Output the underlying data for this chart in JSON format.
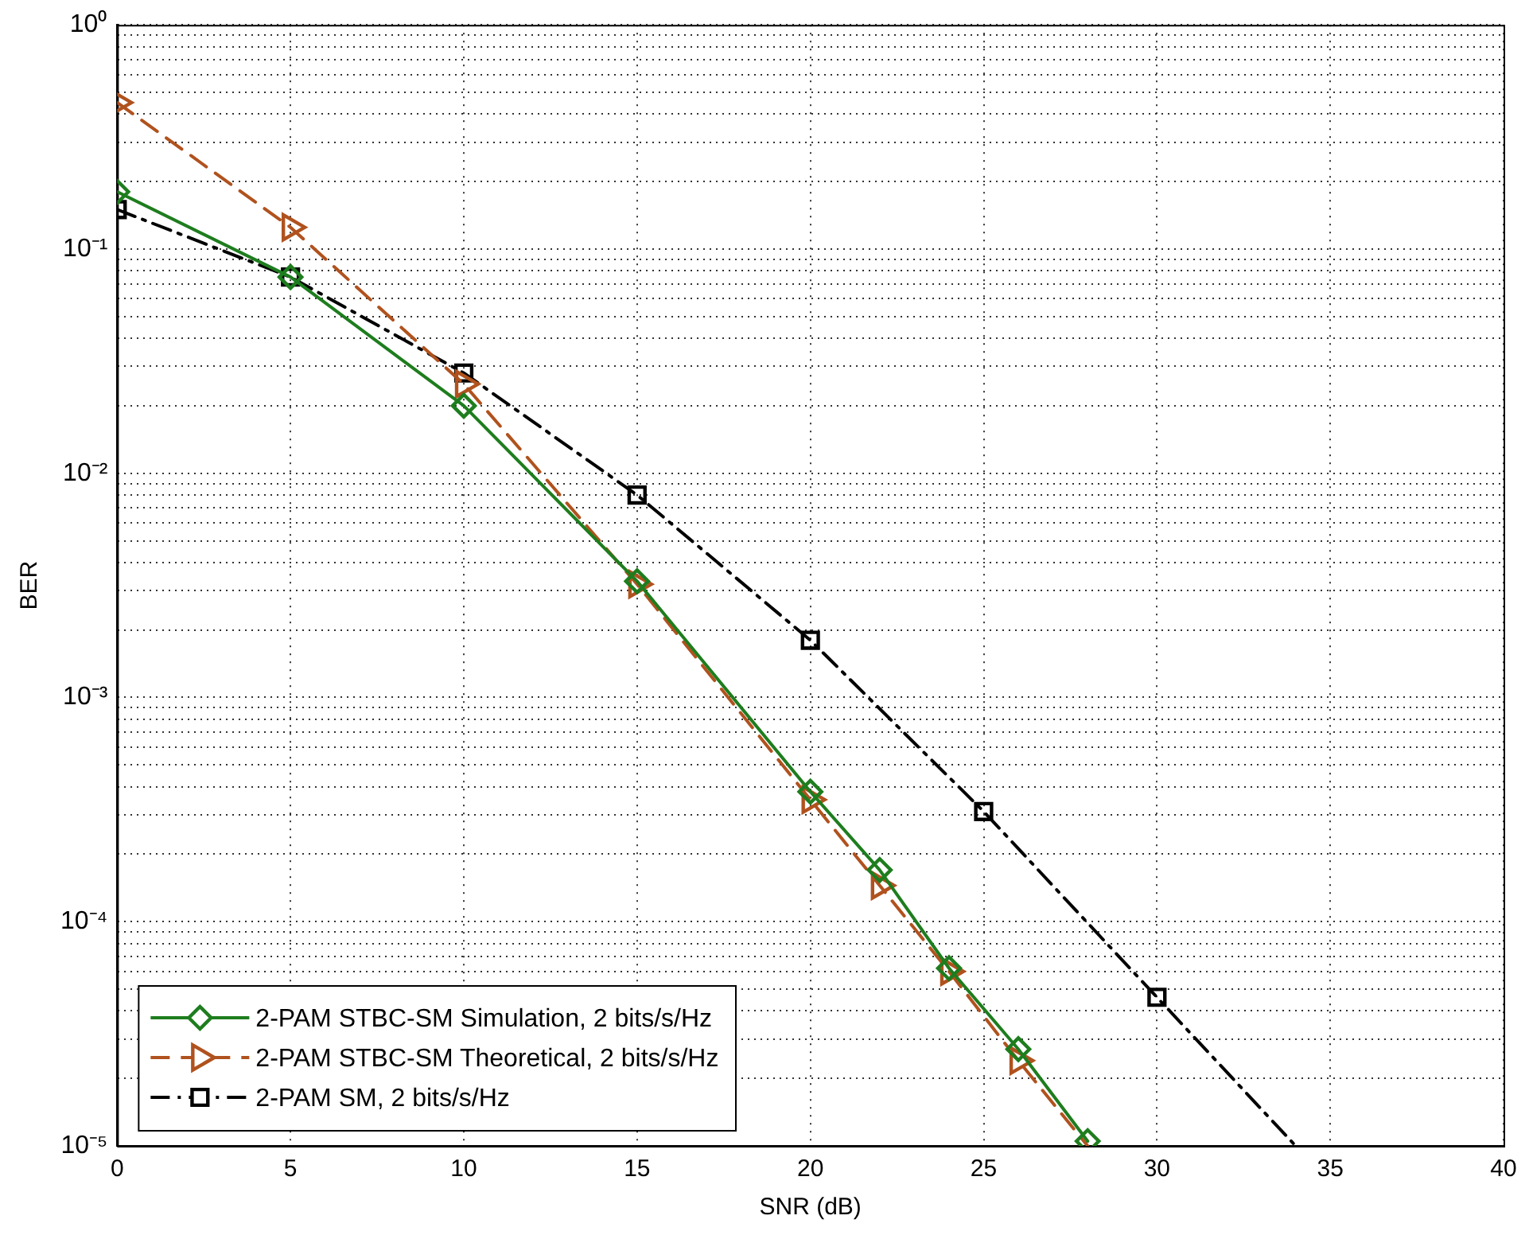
{
  "chart_data": {
    "type": "line",
    "xlabel": "SNR (dB)",
    "ylabel": "BER",
    "log": "y",
    "grid": true,
    "legend": "bottom left",
    "xlim": [
      0,
      40
    ],
    "xticks": [
      0,
      5,
      10,
      15,
      20,
      25,
      30,
      35,
      40
    ],
    "ylim": [
      1e-05,
      1
    ],
    "yticks": [
      {
        "value": 1e-05,
        "label": "10⁻⁵"
      },
      {
        "value": 2e-05,
        "label": null
      },
      {
        "value": 3e-05,
        "label": null
      },
      {
        "value": 4e-05,
        "label": null
      },
      {
        "value": 5e-05,
        "label": null
      },
      {
        "value": 6e-05,
        "label": null
      },
      {
        "value": 7e-05,
        "label": null
      },
      {
        "value": 8e-05,
        "label": null
      },
      {
        "value": 9e-05,
        "label": null
      },
      {
        "value": 0.0001,
        "label": "10⁻⁴"
      },
      {
        "value": 0.0002,
        "label": null
      },
      {
        "value": 0.0003,
        "label": null
      },
      {
        "value": 0.0004,
        "label": null
      },
      {
        "value": 0.0005,
        "label": null
      },
      {
        "value": 0.0006,
        "label": null
      },
      {
        "value": 0.0007,
        "label": null
      },
      {
        "value": 0.0008,
        "label": null
      },
      {
        "value": 0.0009,
        "label": null
      },
      {
        "value": 0.001,
        "label": "10⁻³"
      },
      {
        "value": 0.002,
        "label": null
      },
      {
        "value": 0.003,
        "label": null
      },
      {
        "value": 0.004,
        "label": null
      },
      {
        "value": 0.005,
        "label": null
      },
      {
        "value": 0.006,
        "label": null
      },
      {
        "value": 0.007,
        "label": null
      },
      {
        "value": 0.008,
        "label": null
      },
      {
        "value": 0.009,
        "label": null
      },
      {
        "value": 0.01,
        "label": "10⁻²"
      },
      {
        "value": 0.02,
        "label": null
      },
      {
        "value": 0.03,
        "label": null
      },
      {
        "value": 0.04,
        "label": null
      },
      {
        "value": 0.05,
        "label": null
      },
      {
        "value": 0.06,
        "label": null
      },
      {
        "value": 0.07,
        "label": null
      },
      {
        "value": 0.08,
        "label": null
      },
      {
        "value": 0.09,
        "label": null
      },
      {
        "value": 0.1,
        "label": "10⁻¹"
      },
      {
        "value": 0.2,
        "label": null
      },
      {
        "value": 0.3,
        "label": null
      },
      {
        "value": 0.4,
        "label": null
      },
      {
        "value": 0.5,
        "label": null
      },
      {
        "value": 0.6,
        "label": null
      },
      {
        "value": 0.7,
        "label": null
      },
      {
        "value": 0.8,
        "label": null
      },
      {
        "value": 0.9,
        "label": null
      },
      {
        "value": 1,
        "label": "10⁰"
      }
    ],
    "series": [
      {
        "name": "2-PAM STBC-SM Simulation, 2 bits/s/Hz",
        "color": "#1e7d1e",
        "marker": "diamond",
        "line_style": "solid",
        "x": [
          0,
          5,
          10,
          15,
          20,
          22,
          24,
          26,
          28
        ],
        "values": [
          0.18,
          0.075,
          0.02,
          0.0033,
          0.00038,
          0.00017,
          6.2e-05,
          2.7e-05,
          1.05e-05
        ]
      },
      {
        "name": "2-PAM STBC-SM Theoretical, 2 bits/s/Hz",
        "color": "#b0521e",
        "marker": "triangle-right",
        "line_style": "dashed",
        "x": [
          0,
          5,
          10,
          15,
          20,
          22,
          24,
          26,
          28
        ],
        "values": [
          0.45,
          0.125,
          0.025,
          0.0032,
          0.00035,
          0.000145,
          6e-05,
          2.4e-05,
          1e-05
        ]
      },
      {
        "name": "2-PAM SM, 2 bits/s/Hz",
        "color": "#000000",
        "marker": "square",
        "line_style": "dashdot",
        "x": [
          0,
          5,
          10,
          15,
          20,
          25,
          30,
          34
        ],
        "values": [
          0.15,
          0.075,
          0.028,
          0.008,
          0.0018,
          0.00031,
          4.6e-05,
          1e-05
        ]
      }
    ]
  }
}
